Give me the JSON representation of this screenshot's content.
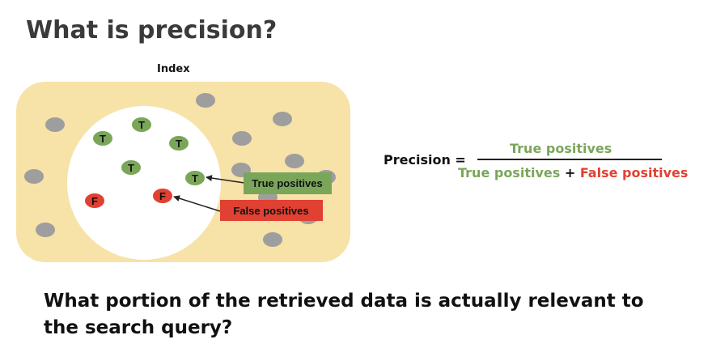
{
  "title": "What is precision?",
  "index_label": "Index",
  "dots": {
    "true_letter": "T",
    "false_letter": "F"
  },
  "callouts": {
    "true_positives": "True positives",
    "false_positives": "False positives"
  },
  "equation": {
    "label": "Precision =",
    "numerator": "True positives",
    "denominator_true": "True positives",
    "denominator_plus": "+",
    "denominator_false": "False positives"
  },
  "question": "What portion of the retrieved data is actually relevant to the search query?",
  "colors": {
    "index_fill": "#f7e2a8",
    "retrieved_fill": "#ffffff",
    "irrelevant_dot": "#9e9e9e",
    "true_positive": "#7aa65a",
    "false_positive": "#e04132",
    "text_dark": "#111111"
  }
}
